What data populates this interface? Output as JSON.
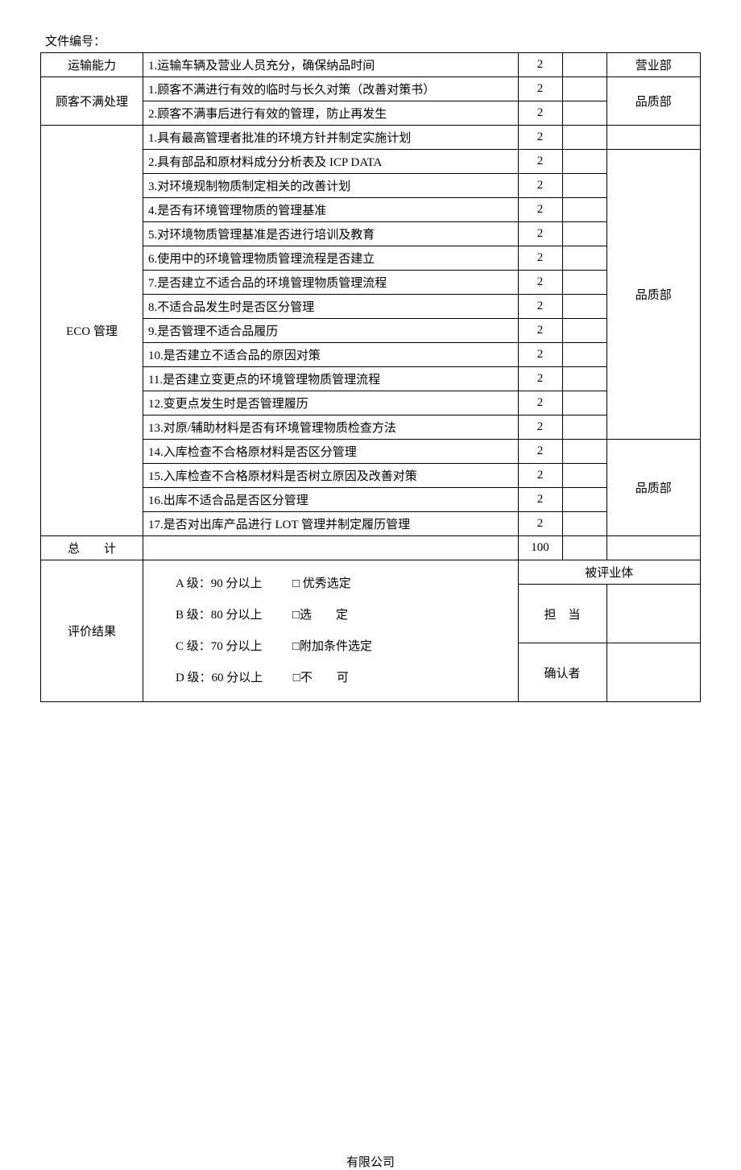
{
  "header": {
    "doc_num_label": "文件编号："
  },
  "rows": [
    {
      "cat": "运输能力",
      "item": "1.运输车辆及营业人员充分，确保纳品时间",
      "score": "2",
      "dept": "营业部",
      "cat_rowspan": 1,
      "dept_rowspan": 1,
      "show_cat": true,
      "show_dept": true
    },
    {
      "cat": "顾客不满处理",
      "item": "1.顾客不满进行有效的临时与长久对策（改善对策书）",
      "score": "2",
      "dept": "品质部",
      "cat_rowspan": 2,
      "dept_rowspan": 2,
      "show_cat": true,
      "show_dept": true
    },
    {
      "item": "2.顾客不满事后进行有效的管理，防止再发生",
      "score": "2",
      "show_cat": false,
      "show_dept": false
    },
    {
      "cat": "ECO 管理",
      "item": "1.具有最高管理者批准的环境方针并制定实施计划",
      "score": "2",
      "dept": "",
      "cat_rowspan": 17,
      "dept_rowspan": 1,
      "show_cat": true,
      "show_dept": true
    },
    {
      "item": "2.具有部品和原材料成分分析表及 ICP DATA",
      "score": "2",
      "dept": "品质部",
      "dept_rowspan": 12,
      "show_cat": false,
      "show_dept": true
    },
    {
      "item": "3.对环境规制物质制定相关的改善计划",
      "score": "2",
      "show_cat": false,
      "show_dept": false
    },
    {
      "item": "4.是否有环境管理物质的管理基准",
      "score": "2",
      "show_cat": false,
      "show_dept": false
    },
    {
      "item": "5.对环境物质管理基准是否进行培训及教育",
      "score": "2",
      "show_cat": false,
      "show_dept": false
    },
    {
      "item": "6.使用中的环境管理物质管理流程是否建立",
      "score": "2",
      "show_cat": false,
      "show_dept": false
    },
    {
      "item": "7.是否建立不适合品的环境管理物质管理流程",
      "score": "2",
      "show_cat": false,
      "show_dept": false
    },
    {
      "item": "8.不适合品发生时是否区分管理",
      "score": "2",
      "show_cat": false,
      "show_dept": false
    },
    {
      "item": "9.是否管理不适合品履历",
      "score": "2",
      "show_cat": false,
      "show_dept": false
    },
    {
      "item": "10.是否建立不适合品的原因对策",
      "score": "2",
      "show_cat": false,
      "show_dept": false
    },
    {
      "item": "11.是否建立变更点的环境管理物质管理流程",
      "score": "2",
      "show_cat": false,
      "show_dept": false
    },
    {
      "item": "12.变更点发生时是否管理履历",
      "score": "2",
      "show_cat": false,
      "show_dept": false
    },
    {
      "item": "13.对原/辅助材料是否有环境管理物质检查方法",
      "score": "2",
      "show_cat": false,
      "show_dept": false
    },
    {
      "item": "14.入库检查不合格原材料是否区分管理",
      "score": "2",
      "dept": "品质部",
      "dept_rowspan": 4,
      "show_cat": false,
      "show_dept": true
    },
    {
      "item": "15.入库检查不合格原材料是否树立原因及改善对策",
      "score": "2",
      "show_cat": false,
      "show_dept": false
    },
    {
      "item": "16.出库不适合品是否区分管理",
      "score": "2",
      "show_cat": false,
      "show_dept": false
    },
    {
      "item": "17.是否对出库产品进行 LOT 管理并制定履历管理",
      "score": "2",
      "show_cat": false,
      "show_dept": false
    }
  ],
  "total": {
    "label": "总　　计",
    "value": "100"
  },
  "eval": {
    "label": "评价结果",
    "lines": [
      "A 级：90 分以上          □ 优秀选定",
      "B 级：80 分以上          □选　　定",
      "C 级：70 分以上          □附加条件选定",
      "D 级：60 分以上          □不　　可"
    ],
    "right_header": "被评业体",
    "row1_label": "担　当",
    "row2_label": "确认者"
  },
  "footer": {
    "company": "有限公司"
  }
}
